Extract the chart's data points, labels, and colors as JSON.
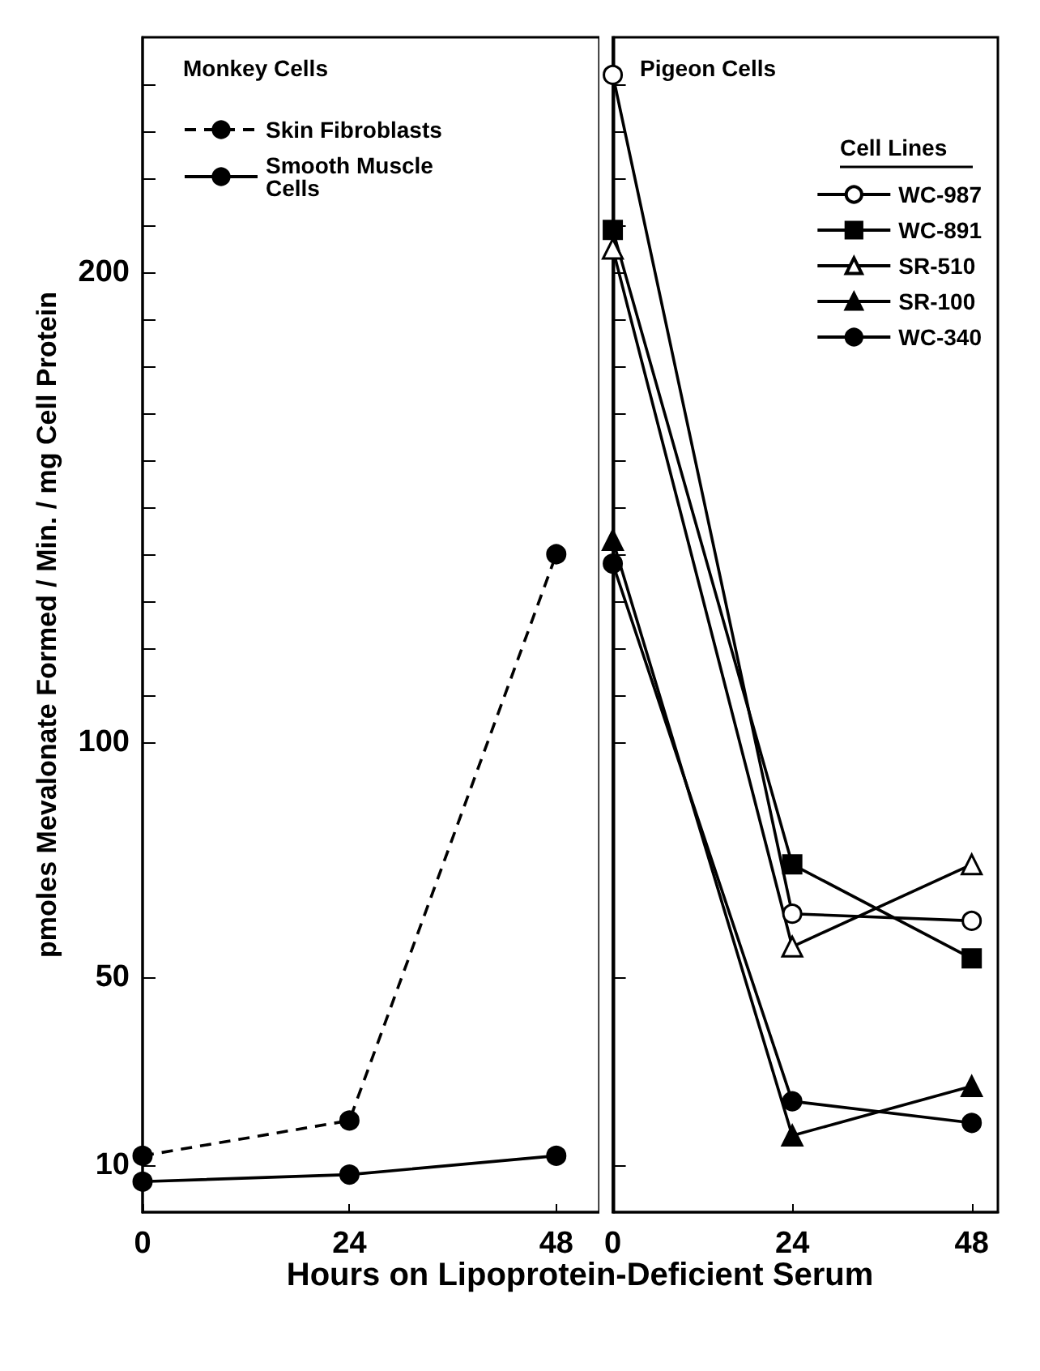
{
  "chart_data": [
    {
      "type": "line",
      "ylabel": "pmoles Mevalonate Formed / Min. / mg Cell Protein",
      "xlabel": "Hours on Lipoprotein-Deficient Serum",
      "annotations": [
        "Monkey Cells"
      ],
      "x": [
        0,
        24,
        48
      ],
      "xlim": [
        0,
        53
      ],
      "xticks": [
        0,
        24,
        48
      ],
      "ylim": [
        0,
        250
      ],
      "yticks": [
        10,
        50,
        100,
        {
          "value": 110,
          "label": null
        },
        {
          "value": 120,
          "label": null
        },
        {
          "value": 130,
          "label": null
        },
        {
          "value": 140,
          "label": null
        },
        {
          "value": 150,
          "label": null
        },
        {
          "value": 160,
          "label": null
        },
        {
          "value": 170,
          "label": null
        },
        {
          "value": 180,
          "label": null
        },
        {
          "value": 190,
          "label": null
        },
        200,
        {
          "value": 210,
          "label": null
        },
        {
          "value": 220,
          "label": null
        },
        {
          "value": 230,
          "label": null
        },
        {
          "value": 240,
          "label": null
        }
      ],
      "grid": false,
      "legend": "top left",
      "series": [
        {
          "name": "Skin Fibroblasts",
          "color": "#000000",
          "marker": "circle",
          "line_style": "dashed",
          "values": [
            12,
            19.5,
            140
          ]
        },
        {
          "name": "Smooth Muscle Cells",
          "color": "#000000",
          "marker": "circle",
          "line_style": "solid",
          "values": [
            6.5,
            8,
            12
          ]
        }
      ]
    },
    {
      "type": "line",
      "annotations": [
        "Pigeon Cells"
      ],
      "legend_title": "Cell Lines",
      "x": [
        0,
        24,
        48
      ],
      "xlim": [
        0,
        51.5
      ],
      "xticks": [
        0,
        24,
        48
      ],
      "ylim": [
        0,
        250
      ],
      "yticks": [
        10,
        50,
        100,
        {
          "value": 110,
          "label": null
        },
        {
          "value": 120,
          "label": null
        },
        {
          "value": 130,
          "label": null
        },
        {
          "value": 140,
          "label": null
        },
        {
          "value": 150,
          "label": null
        },
        {
          "value": 160,
          "label": null
        },
        {
          "value": 170,
          "label": null
        },
        {
          "value": 180,
          "label": null
        },
        {
          "value": 190,
          "label": null
        },
        200,
        {
          "value": 210,
          "label": null
        },
        {
          "value": 220,
          "label": null
        },
        {
          "value": 230,
          "label": null
        },
        {
          "value": 240,
          "label": null
        }
      ],
      "tick_labels": "x",
      "grid": false,
      "legend": "top right",
      "series": [
        {
          "name": "WC-987",
          "color": "#ffffff",
          "marker": "circle",
          "values": [
            242,
            63.5,
            62
          ]
        },
        {
          "name": "WC-891",
          "color": "#000000",
          "marker": "square",
          "values": [
            209,
            74,
            54
          ]
        },
        {
          "name": "SR-510",
          "color": "#ffffff",
          "marker": "triangle",
          "values": [
            205,
            56.5,
            74
          ]
        },
        {
          "name": "SR-100",
          "color": "#000000",
          "marker": "triangle",
          "values": [
            143,
            16.3,
            26.8
          ]
        },
        {
          "name": "WC-340",
          "color": "#000000",
          "marker": "circle",
          "values": [
            138,
            23.6,
            19
          ]
        }
      ]
    }
  ]
}
